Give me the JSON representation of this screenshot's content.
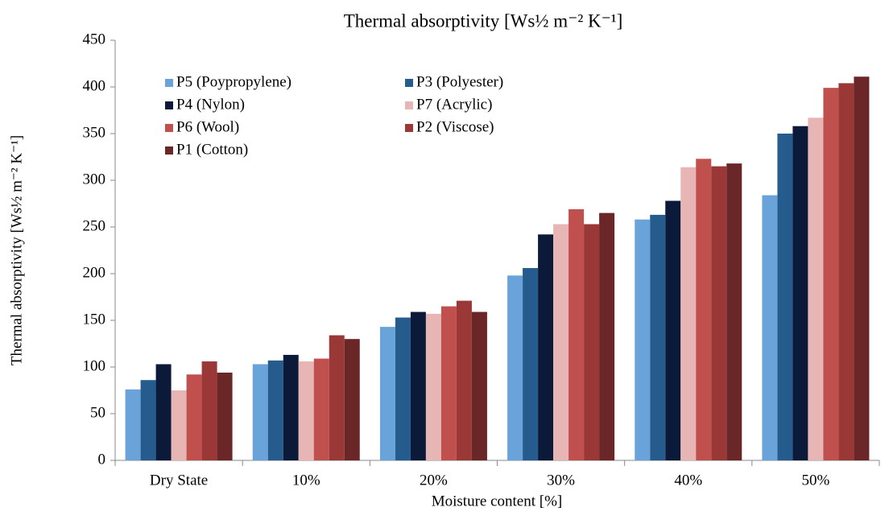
{
  "chart_data": {
    "type": "bar",
    "title": "Thermal absorptivity [Ws½ m⁻² K⁻¹]",
    "y_label": "Thermal absorptivity [Ws½ m⁻² K⁻¹]",
    "x_label": "Moisture content [%]",
    "categories": [
      "Dry State",
      "10%",
      "20%",
      "30%",
      "40%",
      "50%"
    ],
    "series": [
      {
        "name": "P5 (Poypropylene)",
        "color": "#6aa3d9",
        "values": [
          76,
          103,
          143,
          198,
          258,
          284
        ]
      },
      {
        "name": "P3 (Polyester)",
        "color": "#255b8d",
        "values": [
          86,
          107,
          153,
          206,
          263,
          350
        ]
      },
      {
        "name": "P4 (Nylon)",
        "color": "#0c1a3a",
        "values": [
          103,
          113,
          159,
          242,
          278,
          358
        ]
      },
      {
        "name": "P7 (Acrylic)",
        "color": "#e6b5b4",
        "values": [
          75,
          106,
          157,
          253,
          314,
          367
        ]
      },
      {
        "name": "P6 (Wool)",
        "color": "#c0504d",
        "values": [
          92,
          109,
          165,
          269,
          323,
          399
        ]
      },
      {
        "name": "P2 (Viscose)",
        "color": "#993837",
        "values": [
          106,
          134,
          171,
          253,
          315,
          404
        ]
      },
      {
        "name": "P1 (Cotton)",
        "color": "#6b2627",
        "values": [
          94,
          130,
          159,
          265,
          318,
          411
        ]
      }
    ],
    "ylim": [
      0,
      450
    ],
    "yticks": [
      0,
      50,
      100,
      150,
      200,
      250,
      300,
      350,
      400,
      450
    ],
    "legend": "upper left"
  }
}
